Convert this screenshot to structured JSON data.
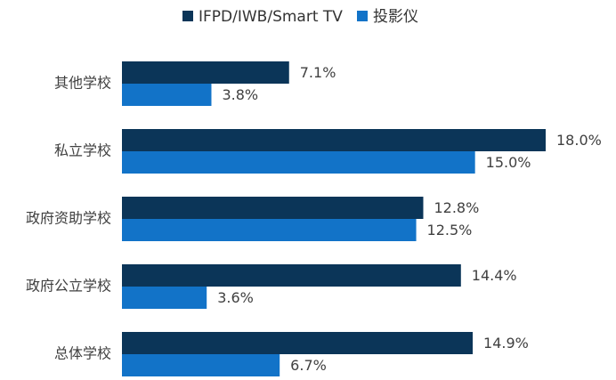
{
  "chart_data": {
    "type": "bar",
    "orientation": "horizontal",
    "categories": [
      "其他学校",
      "私立学校",
      "政府资助学校",
      "政府公立学校",
      "总体学校"
    ],
    "series": [
      {
        "name": "IFPD/IWB/Smart TV",
        "color": "#0b3558",
        "values": [
          7.1,
          18.0,
          12.8,
          14.4,
          14.9
        ],
        "value_labels": [
          "7.1%",
          "18.0%",
          "12.8%",
          "14.4%",
          "14.9%"
        ]
      },
      {
        "name": "投影仪",
        "color": "#1273c8",
        "values": [
          3.8,
          15.0,
          12.5,
          3.6,
          6.7
        ],
        "value_labels": [
          "3.8%",
          "15.0%",
          "12.5%",
          "3.6%",
          "6.7%"
        ]
      }
    ],
    "legend": "top"
  }
}
